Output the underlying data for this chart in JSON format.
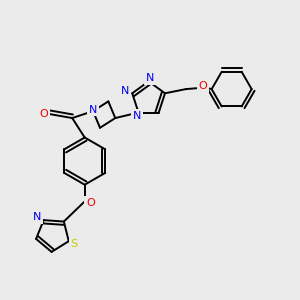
{
  "background_color": "#ebebeb",
  "atom_colors": {
    "C": "#000000",
    "N": "#0000ee",
    "O": "#ee0000",
    "S": "#cccc00"
  },
  "bond_color": "#000000",
  "figsize": [
    3.0,
    3.0
  ],
  "dpi": 100
}
